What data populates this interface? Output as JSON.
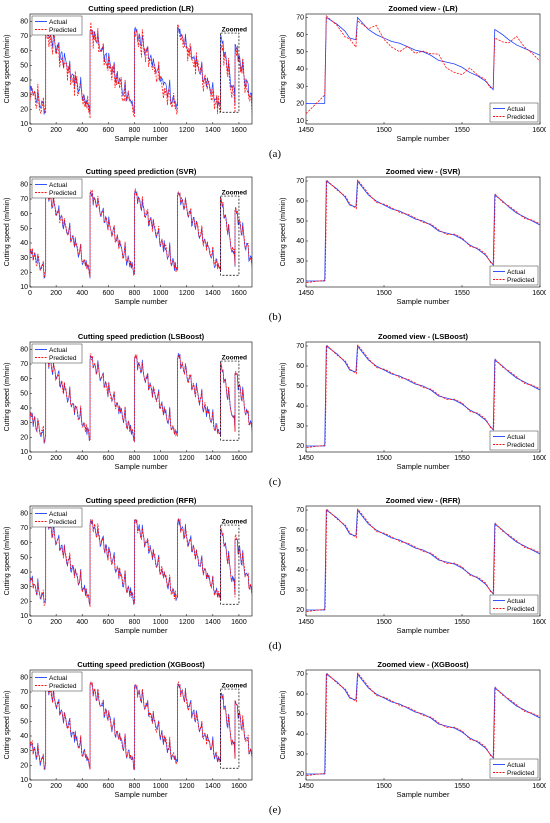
{
  "actual_color": "#1f3fff",
  "predicted_color": "#ff1010",
  "rows": [
    {
      "label": "(a)",
      "left": {
        "title": "Cutting speed prediction (LR)",
        "xlabel": "Sample number",
        "ylabel": "Cutting speed (m/min)",
        "xticks": [
          "0",
          "200",
          "400",
          "600",
          "800",
          "1000",
          "1200",
          "1400",
          "1600"
        ],
        "yticks": [
          "10",
          "20",
          "30",
          "40",
          "50",
          "60",
          "70",
          "80"
        ],
        "legend": [
          "Actual",
          "Predicted"
        ],
        "zoom_label": "Zoomed"
      },
      "right": {
        "title": "Zoomed view - (LR)",
        "xlabel": "Sample number",
        "ylabel": "Cutting speed (m/min)",
        "xticks": [
          "1450",
          "1500",
          "1550",
          "1600"
        ],
        "yticks": [
          "10",
          "20",
          "30",
          "40",
          "50",
          "60",
          "70"
        ],
        "legend": [
          "Actual",
          "Predicted"
        ]
      }
    },
    {
      "label": "(b)",
      "left": {
        "title": "Cutting speed prediction (SVR)",
        "xlabel": "Sample number",
        "ylabel": "Cutting speed (m/min)",
        "xticks": [
          "0",
          "200",
          "400",
          "600",
          "800",
          "1000",
          "1200",
          "1400",
          "1600"
        ],
        "yticks": [
          "10",
          "20",
          "30",
          "40",
          "50",
          "60",
          "70",
          "80"
        ],
        "legend": [
          "Actual",
          "Predicted"
        ],
        "zoom_label": "Zoomed"
      },
      "right": {
        "title": "Zoomed view - (SVR)",
        "xlabel": "Sample number",
        "ylabel": "Cutting speed (m/min)",
        "xticks": [
          "1450",
          "1500",
          "1550",
          "1600"
        ],
        "yticks": [
          "20",
          "30",
          "40",
          "50",
          "60",
          "70"
        ],
        "legend": [
          "Actual",
          "Predicted"
        ]
      }
    },
    {
      "label": "(c)",
      "left": {
        "title": "Cutting speed prediction (LSBoost)",
        "xlabel": "Sample number",
        "ylabel": "Cutting speed (m/min)",
        "xticks": [
          "0",
          "200",
          "400",
          "600",
          "800",
          "1000",
          "1200",
          "1400",
          "1600"
        ],
        "yticks": [
          "10",
          "20",
          "30",
          "40",
          "50",
          "60",
          "70",
          "80"
        ],
        "legend": [
          "Actual",
          "Predicted"
        ],
        "zoom_label": "Zoomed"
      },
      "right": {
        "title": "Zoomed view - (LSBoost)",
        "xlabel": "Sample number",
        "ylabel": "Cutting speed (m/min)",
        "xticks": [
          "1450",
          "1500",
          "1550",
          "1600"
        ],
        "yticks": [
          "20",
          "30",
          "40",
          "50",
          "60",
          "70"
        ],
        "legend": [
          "Actual",
          "Predicted"
        ]
      }
    },
    {
      "label": "(d)",
      "left": {
        "title": "Cutting speed prediction (RFR)",
        "xlabel": "Sample number",
        "ylabel": "Cutting speed (m/min)",
        "xticks": [
          "0",
          "200",
          "400",
          "600",
          "800",
          "1000",
          "1200",
          "1400",
          "1600"
        ],
        "yticks": [
          "10",
          "20",
          "30",
          "40",
          "50",
          "60",
          "70",
          "80"
        ],
        "legend": [
          "Actual",
          "Predicted"
        ],
        "zoom_label": "Zoomed"
      },
      "right": {
        "title": "Zoomed view - (RFR)",
        "xlabel": "Sample number",
        "ylabel": "Cutting speed (m/min)",
        "xticks": [
          "1450",
          "1500",
          "1550",
          "1600"
        ],
        "yticks": [
          "20",
          "30",
          "40",
          "50",
          "60",
          "70"
        ],
        "legend": [
          "Actual",
          "Predicted"
        ]
      }
    },
    {
      "label": "(e)",
      "left": {
        "title": "Cutting speed prediction (XGBoost)",
        "xlabel": "Sample number",
        "ylabel": "Cutting speed (m/min)",
        "xticks": [
          "0",
          "200",
          "400",
          "600",
          "800",
          "1000",
          "1200",
          "1400",
          "1600"
        ],
        "yticks": [
          "10",
          "20",
          "30",
          "40",
          "50",
          "60",
          "70",
          "80"
        ],
        "legend": [
          "Actual",
          "Predicted"
        ],
        "zoom_label": "Zoomed"
      },
      "right": {
        "title": "Zoomed view - (XGBoost)",
        "xlabel": "Sample number",
        "ylabel": "Cutting speed (m/min)",
        "xticks": [
          "1450",
          "1500",
          "1550",
          "1600"
        ],
        "yticks": [
          "20",
          "30",
          "40",
          "50",
          "60",
          "70"
        ],
        "legend": [
          "Actual",
          "Predicted"
        ]
      }
    }
  ],
  "chart_data": [
    {
      "type": "line",
      "panel": "left",
      "series": [
        {
          "name": "Actual"
        },
        {
          "name": "Predicted"
        }
      ],
      "xlim": [
        0,
        1700
      ],
      "ylim": [
        10,
        85
      ],
      "cycles": [
        {
          "start": 0,
          "end": 120,
          "peak": 34,
          "low": 19
        },
        {
          "start": 120,
          "end": 460,
          "peak": 75,
          "low": 20
        },
        {
          "start": 460,
          "end": 800,
          "peak": 74,
          "low": 20
        },
        {
          "start": 800,
          "end": 1130,
          "peak": 74,
          "low": 20
        },
        {
          "start": 1130,
          "end": 1460,
          "peak": 74,
          "low": 20
        },
        {
          "start": 1460,
          "end": 1570,
          "peak": 70,
          "low": 27
        },
        {
          "start": 1570,
          "end": 1700,
          "peak": 63,
          "low": 25
        }
      ],
      "zoom_box": {
        "x": [
          1460,
          1600
        ],
        "y": [
          18,
          72
        ]
      }
    },
    {
      "type": "line",
      "panel": "right",
      "series": [
        {
          "name": "Actual"
        },
        {
          "name": "Predicted"
        }
      ],
      "xlim": [
        1450,
        1600
      ],
      "ylim": [
        18,
        72
      ],
      "actual_points": [
        [
          1450,
          20
        ],
        [
          1462,
          20
        ],
        [
          1463,
          70
        ],
        [
          1470,
          66
        ],
        [
          1475,
          62
        ],
        [
          1478,
          58
        ],
        [
          1482,
          57
        ],
        [
          1483,
          70
        ],
        [
          1490,
          63
        ],
        [
          1495,
          60
        ],
        [
          1500,
          58
        ],
        [
          1505,
          56
        ],
        [
          1510,
          55
        ],
        [
          1515,
          53
        ],
        [
          1520,
          51
        ],
        [
          1525,
          50
        ],
        [
          1530,
          48
        ],
        [
          1535,
          45
        ],
        [
          1540,
          44
        ],
        [
          1545,
          43
        ],
        [
          1550,
          41
        ],
        [
          1555,
          38
        ],
        [
          1560,
          36
        ],
        [
          1565,
          33
        ],
        [
          1568,
          30
        ],
        [
          1570,
          28
        ],
        [
          1571,
          63
        ],
        [
          1576,
          60
        ],
        [
          1580,
          57
        ],
        [
          1585,
          54
        ],
        [
          1590,
          52
        ],
        [
          1595,
          50
        ],
        [
          1600,
          48
        ]
      ],
      "predicted_points": [
        [
          1450,
          20
        ],
        [
          1462,
          20
        ],
        [
          1463,
          70
        ],
        [
          1470,
          66
        ],
        [
          1475,
          62
        ],
        [
          1478,
          58
        ],
        [
          1482,
          57
        ],
        [
          1483,
          70
        ],
        [
          1490,
          63
        ],
        [
          1495,
          60
        ],
        [
          1500,
          58
        ],
        [
          1505,
          56
        ],
        [
          1510,
          55
        ],
        [
          1515,
          53
        ],
        [
          1520,
          51
        ],
        [
          1525,
          50
        ],
        [
          1530,
          48
        ],
        [
          1535,
          45
        ],
        [
          1540,
          44
        ],
        [
          1545,
          43
        ],
        [
          1550,
          41
        ],
        [
          1555,
          38
        ],
        [
          1560,
          36
        ],
        [
          1565,
          33
        ],
        [
          1568,
          30
        ],
        [
          1570,
          28
        ],
        [
          1571,
          63
        ],
        [
          1576,
          60
        ],
        [
          1580,
          57
        ],
        [
          1585,
          54
        ],
        [
          1590,
          52
        ],
        [
          1595,
          50
        ],
        [
          1600,
          48
        ]
      ]
    }
  ]
}
